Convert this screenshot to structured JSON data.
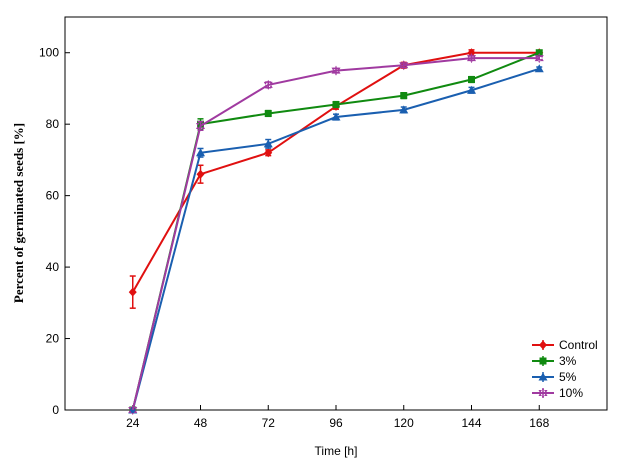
{
  "chart_data": {
    "type": "line",
    "xlabel": "Time [h]",
    "ylabel": "Percent of germinated seeds [%]",
    "x": [
      24,
      48,
      72,
      96,
      120,
      144,
      168
    ],
    "x_ticks": [
      "24",
      "48",
      "72",
      "96",
      "120",
      "144",
      "168"
    ],
    "xlim": [
      0,
      192
    ],
    "ylim": [
      0,
      110
    ],
    "y_ticks": [
      "0",
      "20",
      "40",
      "60",
      "80",
      "100"
    ],
    "grid": false,
    "legend_position": "bottom-right",
    "error_bars": true,
    "series": [
      {
        "name": "Control",
        "color": "#e01010",
        "marker": "diamond",
        "values": [
          33,
          66,
          72,
          85,
          96.5,
          100,
          100
        ],
        "errors": [
          4.5,
          2.5,
          0.8,
          0.8,
          0.8,
          0.8,
          0.5
        ]
      },
      {
        "name": "3%",
        "color": "#108a10",
        "marker": "square",
        "values": [
          0,
          80,
          83,
          85.5,
          88,
          92.5,
          100
        ],
        "errors": [
          0,
          1.5,
          0.8,
          0.8,
          0.8,
          0.8,
          0.5
        ]
      },
      {
        "name": "5%",
        "color": "#1a5fb0",
        "marker": "triangle",
        "values": [
          0,
          72,
          74.5,
          82,
          84,
          89.5,
          95.5
        ],
        "errors": [
          0,
          1.2,
          1.2,
          0.8,
          0.8,
          0.8,
          0.5
        ]
      },
      {
        "name": "10%",
        "color": "#a03aa0",
        "marker": "star",
        "values": [
          0,
          79.5,
          91,
          95,
          96.5,
          98.5,
          98.5
        ],
        "errors": [
          0,
          1.2,
          0.8,
          0.6,
          0.6,
          0.6,
          0.5
        ]
      }
    ]
  }
}
